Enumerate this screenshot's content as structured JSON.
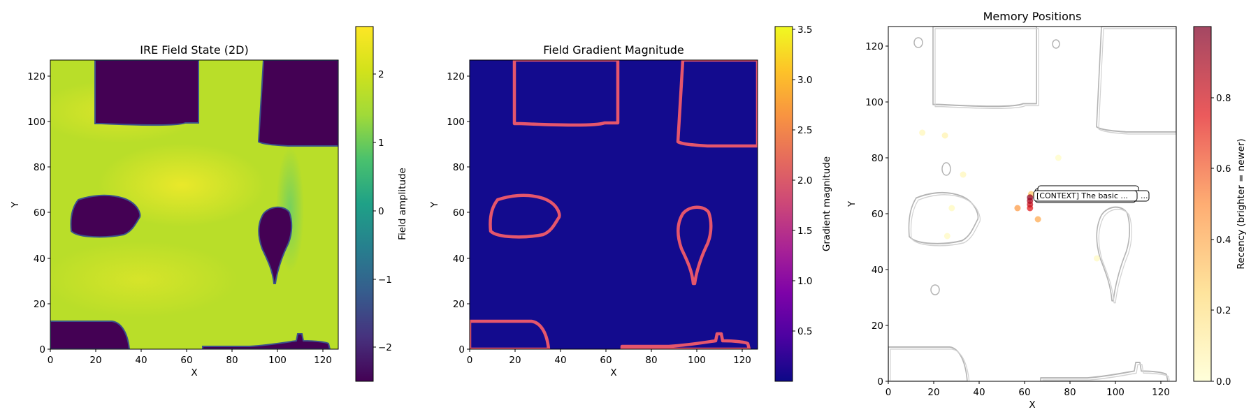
{
  "chart_data": [
    {
      "type": "heatmap",
      "title": "IRE Field State (2D)",
      "xlabel": "X",
      "ylabel": "Y",
      "xlim": [
        0,
        127
      ],
      "ylim": [
        0,
        127
      ],
      "xticks": [
        "0",
        "20",
        "40",
        "60",
        "80",
        "100",
        "120"
      ],
      "yticks": [
        "0",
        "20",
        "40",
        "60",
        "80",
        "100",
        "120"
      ],
      "colormap": "viridis",
      "colorbar": {
        "label": "Field amplitude",
        "range": [
          -2.5,
          2.7
        ],
        "ticks": [
          "2",
          "1",
          "0",
          "−1",
          "−2"
        ],
        "tick_values": [
          2,
          1,
          0,
          -1,
          -2
        ]
      },
      "background_value": 2.3,
      "low_regions": [
        {
          "name": "top-left block",
          "value": -2.4
        },
        {
          "name": "top-right block",
          "value": -2.4
        },
        {
          "name": "left blob",
          "value": -2.4
        },
        {
          "name": "right teardrop",
          "value": -2.4
        },
        {
          "name": "bottom-left strip",
          "value": -2.4
        },
        {
          "name": "bottom-right strip",
          "value": -2.4
        }
      ]
    },
    {
      "type": "heatmap",
      "title": "Field Gradient Magnitude",
      "xlabel": "X",
      "ylabel": "Y",
      "xlim": [
        0,
        127
      ],
      "ylim": [
        0,
        127
      ],
      "xticks": [
        "0",
        "20",
        "40",
        "60",
        "80",
        "100",
        "120"
      ],
      "yticks": [
        "0",
        "20",
        "40",
        "60",
        "80",
        "100",
        "120"
      ],
      "colormap": "plasma",
      "colorbar": {
        "label": "Gradient magnitude",
        "range": [
          0.0,
          3.55
        ],
        "ticks": [
          "3.5",
          "3.0",
          "2.5",
          "2.0",
          "1.5",
          "1.0",
          "0.5"
        ],
        "tick_values": [
          3.5,
          3.0,
          2.5,
          2.0,
          1.5,
          1.0,
          0.5
        ]
      },
      "edge_value": 2.3
    },
    {
      "type": "scatter",
      "title": "Memory Positions",
      "xlabel": "X",
      "ylabel": "Y",
      "xlim": [
        0,
        127
      ],
      "ylim": [
        0,
        127
      ],
      "xticks": [
        "0",
        "20",
        "40",
        "60",
        "80",
        "100",
        "120"
      ],
      "yticks": [
        "0",
        "20",
        "40",
        "60",
        "80",
        "100",
        "120"
      ],
      "colormap": "YlOrRd",
      "colorbar": {
        "label": "Recency (brighter = newer)",
        "range": [
          0.0,
          1.0
        ],
        "ticks": [
          "0.8",
          "0.6",
          "0.4",
          "0.2",
          "0.0"
        ],
        "tick_values": [
          0.8,
          0.6,
          0.4,
          0.2,
          0.0
        ]
      },
      "points": [
        {
          "x": 15,
          "y": 89,
          "recency": 0.05
        },
        {
          "x": 25,
          "y": 88,
          "recency": 0.08
        },
        {
          "x": 33,
          "y": 74,
          "recency": 0.05
        },
        {
          "x": 28,
          "y": 62,
          "recency": 0.04
        },
        {
          "x": 26,
          "y": 52,
          "recency": 0.03
        },
        {
          "x": 75,
          "y": 80,
          "recency": 0.02
        },
        {
          "x": 92,
          "y": 44,
          "recency": 0.03
        },
        {
          "x": 57,
          "y": 62,
          "recency": 0.45
        },
        {
          "x": 66,
          "y": 58,
          "recency": 0.4
        },
        {
          "x": 63,
          "y": 67,
          "recency": 0.3
        },
        {
          "x": 62.5,
          "y": 62,
          "recency": 0.75
        },
        {
          "x": 62.5,
          "y": 63.3,
          "recency": 0.82
        },
        {
          "x": 62.5,
          "y": 64.6,
          "recency": 0.88
        },
        {
          "x": 62.5,
          "y": 65.8,
          "recency": 0.95
        }
      ],
      "annotations": [
        {
          "text": "[CONTEXT] The basic ...",
          "x": 65,
          "y": 67
        },
        {
          "text": "...",
          "x": 113,
          "y": 66
        }
      ]
    }
  ]
}
